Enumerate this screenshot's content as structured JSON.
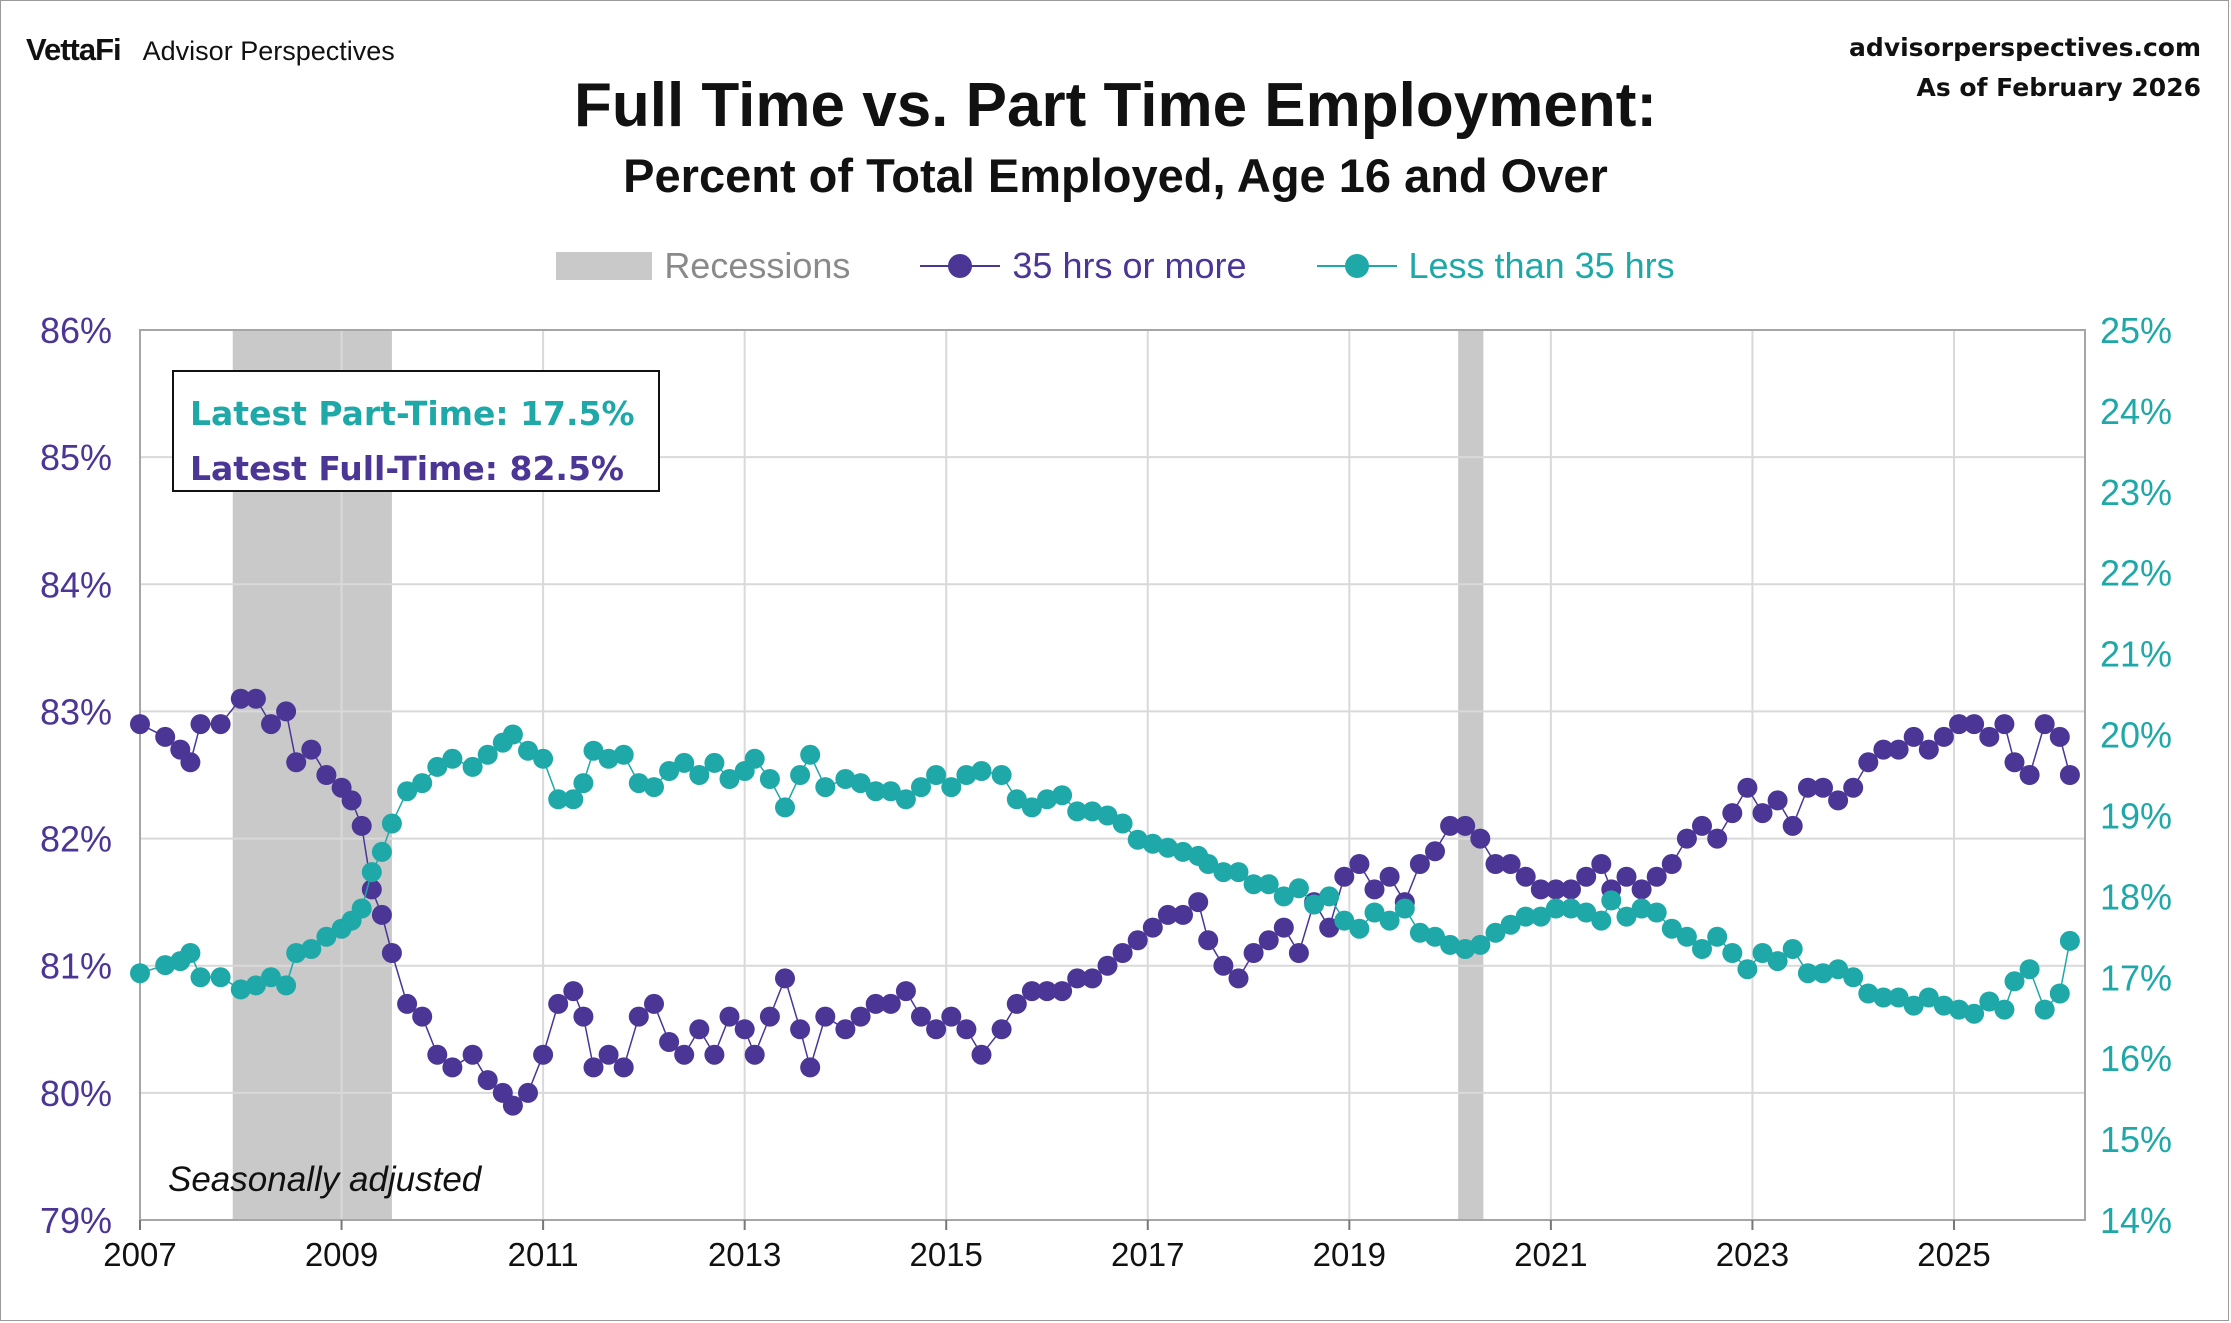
{
  "header": {
    "brand_logo": "VettaFi",
    "brand_name": "Advisor Perspectives",
    "site": "advisorperspectives.com",
    "as_of": "As of February 2026"
  },
  "colors": {
    "full_time": "#4b3595",
    "part_time": "#1fa8a8",
    "recession": "#c9c9c9",
    "grid": "#d9d9d9"
  },
  "infobox": {
    "part_time": "Latest Part-Time: 17.5%",
    "full_time": "Latest Full-Time: 82.5%"
  },
  "note": "Seasonally adjusted",
  "chart_data": {
    "type": "line",
    "title": "Full Time vs. Part Time Employment:",
    "subtitle": "Percent of Total Employed, Age 16 and Over",
    "legend": [
      "Recessions",
      "35 hrs or more",
      "Less than 35 hrs"
    ],
    "legend_position": "top-center",
    "grid": true,
    "x_ticks": [
      "2007",
      "2009",
      "2011",
      "2013",
      "2015",
      "2017",
      "2019",
      "2021",
      "2023",
      "2025"
    ],
    "y_left_ticks": [
      "79%",
      "80%",
      "81%",
      "82%",
      "83%",
      "84%",
      "85%",
      "86%"
    ],
    "y_right_ticks": [
      "14%",
      "15%",
      "16%",
      "17%",
      "18%",
      "19%",
      "20%",
      "21%",
      "22%",
      "23%",
      "24%",
      "25%"
    ],
    "xlim": [
      2007.0,
      2026.3
    ],
    "ylim_left": [
      79,
      86
    ],
    "ylim_right": [
      14,
      25
    ],
    "recessions": [
      [
        2007.92,
        2009.5
      ],
      [
        2020.08,
        2020.33
      ]
    ],
    "series": [
      {
        "name": "35 hrs or more",
        "axis": "left",
        "points": [
          [
            2007.0,
            82.9
          ],
          [
            2007.25,
            82.8
          ],
          [
            2007.4,
            82.7
          ],
          [
            2007.5,
            82.6
          ],
          [
            2007.6,
            82.9
          ],
          [
            2007.8,
            82.9
          ],
          [
            2008.0,
            83.1
          ],
          [
            2008.15,
            83.1
          ],
          [
            2008.3,
            82.9
          ],
          [
            2008.45,
            83.0
          ],
          [
            2008.55,
            82.6
          ],
          [
            2008.7,
            82.7
          ],
          [
            2008.85,
            82.5
          ],
          [
            2009.0,
            82.4
          ],
          [
            2009.1,
            82.3
          ],
          [
            2009.2,
            82.1
          ],
          [
            2009.3,
            81.6
          ],
          [
            2009.4,
            81.4
          ],
          [
            2009.5,
            81.1
          ],
          [
            2009.65,
            80.7
          ],
          [
            2009.8,
            80.6
          ],
          [
            2009.95,
            80.3
          ],
          [
            2010.1,
            80.2
          ],
          [
            2010.3,
            80.3
          ],
          [
            2010.45,
            80.1
          ],
          [
            2010.6,
            80.0
          ],
          [
            2010.7,
            79.9
          ],
          [
            2010.85,
            80.0
          ],
          [
            2011.0,
            80.3
          ],
          [
            2011.15,
            80.7
          ],
          [
            2011.3,
            80.8
          ],
          [
            2011.4,
            80.6
          ],
          [
            2011.5,
            80.2
          ],
          [
            2011.65,
            80.3
          ],
          [
            2011.8,
            80.2
          ],
          [
            2011.95,
            80.6
          ],
          [
            2012.1,
            80.7
          ],
          [
            2012.25,
            80.4
          ],
          [
            2012.4,
            80.3
          ],
          [
            2012.55,
            80.5
          ],
          [
            2012.7,
            80.3
          ],
          [
            2012.85,
            80.6
          ],
          [
            2013.0,
            80.5
          ],
          [
            2013.1,
            80.3
          ],
          [
            2013.25,
            80.6
          ],
          [
            2013.4,
            80.9
          ],
          [
            2013.55,
            80.5
          ],
          [
            2013.65,
            80.2
          ],
          [
            2013.8,
            80.6
          ],
          [
            2014.0,
            80.5
          ],
          [
            2014.15,
            80.6
          ],
          [
            2014.3,
            80.7
          ],
          [
            2014.45,
            80.7
          ],
          [
            2014.6,
            80.8
          ],
          [
            2014.75,
            80.6
          ],
          [
            2014.9,
            80.5
          ],
          [
            2015.05,
            80.6
          ],
          [
            2015.2,
            80.5
          ],
          [
            2015.35,
            80.3
          ],
          [
            2015.55,
            80.5
          ],
          [
            2015.7,
            80.7
          ],
          [
            2015.85,
            80.8
          ],
          [
            2016.0,
            80.8
          ],
          [
            2016.15,
            80.8
          ],
          [
            2016.3,
            80.9
          ],
          [
            2016.45,
            80.9
          ],
          [
            2016.6,
            81.0
          ],
          [
            2016.75,
            81.1
          ],
          [
            2016.9,
            81.2
          ],
          [
            2017.05,
            81.3
          ],
          [
            2017.2,
            81.4
          ],
          [
            2017.35,
            81.4
          ],
          [
            2017.5,
            81.5
          ],
          [
            2017.6,
            81.2
          ],
          [
            2017.75,
            81.0
          ],
          [
            2017.9,
            80.9
          ],
          [
            2018.05,
            81.1
          ],
          [
            2018.2,
            81.2
          ],
          [
            2018.35,
            81.3
          ],
          [
            2018.5,
            81.1
          ],
          [
            2018.65,
            81.5
          ],
          [
            2018.8,
            81.3
          ],
          [
            2018.95,
            81.7
          ],
          [
            2019.1,
            81.8
          ],
          [
            2019.25,
            81.6
          ],
          [
            2019.4,
            81.7
          ],
          [
            2019.55,
            81.5
          ],
          [
            2019.7,
            81.8
          ],
          [
            2019.85,
            81.9
          ],
          [
            2020.0,
            82.1
          ],
          [
            2020.15,
            82.1
          ],
          [
            2020.3,
            82.0
          ],
          [
            2020.45,
            81.8
          ],
          [
            2020.6,
            81.8
          ],
          [
            2020.75,
            81.7
          ],
          [
            2020.9,
            81.6
          ],
          [
            2021.05,
            81.6
          ],
          [
            2021.2,
            81.6
          ],
          [
            2021.35,
            81.7
          ],
          [
            2021.5,
            81.8
          ],
          [
            2021.6,
            81.6
          ],
          [
            2021.75,
            81.7
          ],
          [
            2021.9,
            81.6
          ],
          [
            2022.05,
            81.7
          ],
          [
            2022.2,
            81.8
          ],
          [
            2022.35,
            82.0
          ],
          [
            2022.5,
            82.1
          ],
          [
            2022.65,
            82.0
          ],
          [
            2022.8,
            82.2
          ],
          [
            2022.95,
            82.4
          ],
          [
            2023.1,
            82.2
          ],
          [
            2023.25,
            82.3
          ],
          [
            2023.4,
            82.1
          ],
          [
            2023.55,
            82.4
          ],
          [
            2023.7,
            82.4
          ],
          [
            2023.85,
            82.3
          ],
          [
            2024.0,
            82.4
          ],
          [
            2024.15,
            82.6
          ],
          [
            2024.3,
            82.7
          ],
          [
            2024.45,
            82.7
          ],
          [
            2024.6,
            82.8
          ],
          [
            2024.75,
            82.7
          ],
          [
            2024.9,
            82.8
          ],
          [
            2025.05,
            82.9
          ],
          [
            2025.2,
            82.9
          ],
          [
            2025.35,
            82.8
          ],
          [
            2025.5,
            82.9
          ],
          [
            2025.6,
            82.6
          ],
          [
            2025.75,
            82.5
          ],
          [
            2025.9,
            82.9
          ],
          [
            2026.05,
            82.8
          ],
          [
            2026.15,
            82.5
          ]
        ]
      },
      {
        "name": "Less than 35 hrs",
        "axis": "right",
        "points": [
          [
            2007.0,
            17.05
          ],
          [
            2007.25,
            17.15
          ],
          [
            2007.4,
            17.2
          ],
          [
            2007.5,
            17.3
          ],
          [
            2007.6,
            17.0
          ],
          [
            2007.8,
            17.0
          ],
          [
            2008.0,
            16.85
          ],
          [
            2008.15,
            16.9
          ],
          [
            2008.3,
            17.0
          ],
          [
            2008.45,
            16.9
          ],
          [
            2008.55,
            17.3
          ],
          [
            2008.7,
            17.35
          ],
          [
            2008.85,
            17.5
          ],
          [
            2009.0,
            17.6
          ],
          [
            2009.1,
            17.7
          ],
          [
            2009.2,
            17.85
          ],
          [
            2009.3,
            18.3
          ],
          [
            2009.4,
            18.55
          ],
          [
            2009.5,
            18.9
          ],
          [
            2009.65,
            19.3
          ],
          [
            2009.8,
            19.4
          ],
          [
            2009.95,
            19.6
          ],
          [
            2010.1,
            19.7
          ],
          [
            2010.3,
            19.6
          ],
          [
            2010.45,
            19.75
          ],
          [
            2010.6,
            19.9
          ],
          [
            2010.7,
            20.0
          ],
          [
            2010.85,
            19.8
          ],
          [
            2011.0,
            19.7
          ],
          [
            2011.15,
            19.2
          ],
          [
            2011.3,
            19.2
          ],
          [
            2011.4,
            19.4
          ],
          [
            2011.5,
            19.8
          ],
          [
            2011.65,
            19.7
          ],
          [
            2011.8,
            19.75
          ],
          [
            2011.95,
            19.4
          ],
          [
            2012.1,
            19.35
          ],
          [
            2012.25,
            19.55
          ],
          [
            2012.4,
            19.65
          ],
          [
            2012.55,
            19.5
          ],
          [
            2012.7,
            19.65
          ],
          [
            2012.85,
            19.45
          ],
          [
            2013.0,
            19.55
          ],
          [
            2013.1,
            19.7
          ],
          [
            2013.25,
            19.45
          ],
          [
            2013.4,
            19.1
          ],
          [
            2013.55,
            19.5
          ],
          [
            2013.65,
            19.75
          ],
          [
            2013.8,
            19.35
          ],
          [
            2014.0,
            19.45
          ],
          [
            2014.15,
            19.4
          ],
          [
            2014.3,
            19.3
          ],
          [
            2014.45,
            19.3
          ],
          [
            2014.6,
            19.2
          ],
          [
            2014.75,
            19.35
          ],
          [
            2014.9,
            19.5
          ],
          [
            2015.05,
            19.35
          ],
          [
            2015.2,
            19.5
          ],
          [
            2015.35,
            19.55
          ],
          [
            2015.55,
            19.5
          ],
          [
            2015.7,
            19.2
          ],
          [
            2015.85,
            19.1
          ],
          [
            2016.0,
            19.2
          ],
          [
            2016.15,
            19.25
          ],
          [
            2016.3,
            19.05
          ],
          [
            2016.45,
            19.05
          ],
          [
            2016.6,
            19.0
          ],
          [
            2016.75,
            18.9
          ],
          [
            2016.9,
            18.7
          ],
          [
            2017.05,
            18.65
          ],
          [
            2017.2,
            18.6
          ],
          [
            2017.35,
            18.55
          ],
          [
            2017.5,
            18.5
          ],
          [
            2017.6,
            18.4
          ],
          [
            2017.75,
            18.3
          ],
          [
            2017.9,
            18.3
          ],
          [
            2018.05,
            18.15
          ],
          [
            2018.2,
            18.15
          ],
          [
            2018.35,
            18.0
          ],
          [
            2018.5,
            18.1
          ],
          [
            2018.65,
            17.9
          ],
          [
            2018.8,
            18.0
          ],
          [
            2018.95,
            17.7
          ],
          [
            2019.1,
            17.6
          ],
          [
            2019.25,
            17.8
          ],
          [
            2019.4,
            17.7
          ],
          [
            2019.55,
            17.85
          ],
          [
            2019.7,
            17.55
          ],
          [
            2019.85,
            17.5
          ],
          [
            2020.0,
            17.4
          ],
          [
            2020.15,
            17.35
          ],
          [
            2020.3,
            17.4
          ],
          [
            2020.45,
            17.55
          ],
          [
            2020.6,
            17.65
          ],
          [
            2020.75,
            17.75
          ],
          [
            2020.9,
            17.75
          ],
          [
            2021.05,
            17.85
          ],
          [
            2021.2,
            17.85
          ],
          [
            2021.35,
            17.8
          ],
          [
            2021.5,
            17.7
          ],
          [
            2021.6,
            17.95
          ],
          [
            2021.75,
            17.75
          ],
          [
            2021.9,
            17.85
          ],
          [
            2022.05,
            17.8
          ],
          [
            2022.2,
            17.6
          ],
          [
            2022.35,
            17.5
          ],
          [
            2022.5,
            17.35
          ],
          [
            2022.65,
            17.5
          ],
          [
            2022.8,
            17.3
          ],
          [
            2022.95,
            17.1
          ],
          [
            2023.1,
            17.3
          ],
          [
            2023.25,
            17.2
          ],
          [
            2023.4,
            17.35
          ],
          [
            2023.55,
            17.05
          ],
          [
            2023.7,
            17.05
          ],
          [
            2023.85,
            17.1
          ],
          [
            2024.0,
            17.0
          ],
          [
            2024.15,
            16.8
          ],
          [
            2024.3,
            16.75
          ],
          [
            2024.45,
            16.75
          ],
          [
            2024.6,
            16.65
          ],
          [
            2024.75,
            16.75
          ],
          [
            2024.9,
            16.65
          ],
          [
            2025.05,
            16.6
          ],
          [
            2025.2,
            16.55
          ],
          [
            2025.35,
            16.7
          ],
          [
            2025.5,
            16.6
          ],
          [
            2025.6,
            16.95
          ],
          [
            2025.75,
            17.1
          ],
          [
            2025.9,
            16.6
          ],
          [
            2026.05,
            16.8
          ],
          [
            2026.15,
            17.45
          ]
        ]
      }
    ]
  }
}
